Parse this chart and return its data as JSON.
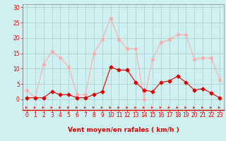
{
  "x": [
    0,
    1,
    2,
    3,
    4,
    5,
    6,
    7,
    8,
    9,
    10,
    11,
    12,
    13,
    14,
    15,
    16,
    17,
    18,
    19,
    20,
    21,
    22,
    23
  ],
  "y_rafales": [
    3,
    0.5,
    11.5,
    15.5,
    13.5,
    10.5,
    1.5,
    1.5,
    15,
    19.5,
    26.5,
    19.5,
    16.5,
    16.5,
    0,
    13,
    18.5,
    19.5,
    21,
    21,
    13,
    13.5,
    13.5,
    6.5
  ],
  "y_moyen": [
    0.5,
    0.5,
    0.5,
    2.5,
    1.5,
    1.5,
    0.5,
    0.5,
    1.5,
    2.5,
    10.5,
    9.5,
    9.5,
    5.5,
    3,
    2.5,
    5.5,
    6,
    7.5,
    5.5,
    3,
    3.5,
    2,
    0.5
  ],
  "color_rafales": "#ffaaaa",
  "color_moyen": "#dd0000",
  "bg_color": "#cff0f0",
  "grid_color": "#aacccc",
  "xlabel": "Vent moyen/en rafales ( km/h )",
  "ylim": [
    0,
    30
  ],
  "xlim": [
    0,
    23
  ],
  "yticks": [
    0,
    5,
    10,
    15,
    20,
    25,
    30
  ],
  "xticks": [
    0,
    1,
    2,
    3,
    4,
    5,
    6,
    7,
    8,
    9,
    10,
    11,
    12,
    13,
    14,
    15,
    16,
    17,
    18,
    19,
    20,
    21,
    22,
    23
  ],
  "marker_size_raf": 2.5,
  "marker_size_moy": 2.5,
  "line_width": 0.8,
  "tick_fontsize": 5.5,
  "xlabel_fontsize": 6.5
}
